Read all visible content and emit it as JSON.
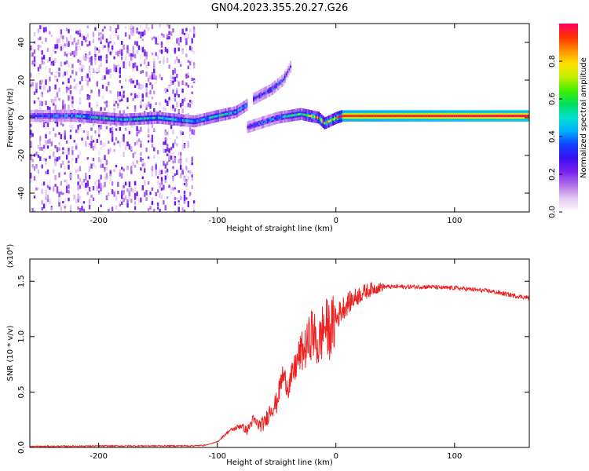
{
  "title": "GN04.2023.355.20.27.G26",
  "chart_data": [
    {
      "type": "heatmap",
      "xlabel": "Height of straight line (km)",
      "ylabel": "Frequency (Hz)",
      "xlim": [
        -258,
        163
      ],
      "ylim": [
        -50,
        50
      ],
      "xticks": [
        -200,
        -100,
        0,
        100
      ],
      "xtick_labels": [
        "-200",
        "-100",
        "0",
        "100"
      ],
      "yticks": [
        -40,
        -20,
        0,
        20,
        40
      ],
      "ytick_labels": [
        "-40",
        "-20",
        "0",
        "20",
        "40"
      ],
      "grid": false,
      "colorbar": {
        "label": "Normalized spectral amplitude",
        "range": [
          0,
          1
        ],
        "ticks": [
          0.0,
          0.2,
          0.4,
          0.6,
          0.8
        ],
        "tick_labels": [
          "0.0",
          "0.2",
          "0.4",
          "0.6",
          "0.8"
        ],
        "colors": [
          "#ffffff",
          "#e4c8f2",
          "#b070e8",
          "#7a22f0",
          "#3a10f0",
          "#1040ff",
          "#00b0ff",
          "#00e0d0",
          "#00e060",
          "#40f000",
          "#c0f000",
          "#ffe000",
          "#ff9000",
          "#ff3000",
          "#ff0060"
        ]
      },
      "features": [
        {
          "name": "noise",
          "x_range": [
            -258,
            -120
          ],
          "amplitude": 0.2
        },
        {
          "name": "main band",
          "points": [
            [
              -258,
              1,
              0.3
            ],
            [
              -220,
              1,
              0.4
            ],
            [
              -200,
              0,
              0.5
            ],
            [
              -180,
              -1,
              0.45
            ],
            [
              -150,
              0,
              0.5
            ],
            [
              -120,
              -2,
              0.45
            ],
            [
              -100,
              1,
              0.5
            ],
            [
              -85,
              3,
              0.45
            ],
            [
              -75,
              7,
              0.4
            ]
          ]
        },
        {
          "name": "lower branch",
          "points": [
            [
              -75,
              -5,
              0.3
            ],
            [
              -50,
              0,
              0.4
            ],
            [
              -30,
              2,
              0.55
            ],
            [
              -15,
              0,
              0.8
            ],
            [
              -10,
              -3,
              0.7
            ],
            [
              0,
              0,
              0.8
            ],
            [
              5,
              1,
              0.95
            ],
            [
              163,
              1,
              1.0
            ]
          ]
        },
        {
          "name": "upper branch",
          "points": [
            [
              -70,
              10,
              0.3
            ],
            [
              -55,
              15,
              0.35
            ],
            [
              -45,
              20,
              0.3
            ],
            [
              -38,
              28,
              0.25
            ]
          ]
        }
      ]
    },
    {
      "type": "line",
      "xlabel": "Height of straight line (km)",
      "ylabel": "SNR (10 * v/v)",
      "scale_label": "(x10⁴)",
      "xlim": [
        -258,
        163
      ],
      "ylim": [
        0,
        1.7
      ],
      "xticks": [
        -200,
        -100,
        0,
        100
      ],
      "xtick_labels": [
        "-200",
        "-100",
        "0",
        "100"
      ],
      "yticks": [
        0.0,
        0.5,
        1.0,
        1.5
      ],
      "ytick_labels": [
        "0.0",
        "0.5",
        "1.0",
        "1.5"
      ],
      "grid": false,
      "color": "#ee2222",
      "series": [
        {
          "x": [
            -258,
            -240,
            -220,
            -200,
            -180,
            -160,
            -140,
            -120,
            -110,
            -100,
            -95,
            -90,
            -85,
            -80,
            -75,
            -70,
            -65,
            -60,
            -55,
            -50,
            -45,
            -40,
            -35,
            -30,
            -25,
            -20,
            -15,
            -10,
            -5,
            0,
            5,
            10,
            20,
            30,
            40,
            50,
            60,
            70,
            80,
            90,
            100,
            110,
            120,
            130,
            140,
            150,
            163
          ],
          "y": [
            0.01,
            0.01,
            0.012,
            0.013,
            0.013,
            0.014,
            0.014,
            0.015,
            0.02,
            0.05,
            0.1,
            0.15,
            0.17,
            0.2,
            0.15,
            0.25,
            0.2,
            0.22,
            0.35,
            0.4,
            0.65,
            0.55,
            0.7,
            0.85,
            0.9,
            1.05,
            0.9,
            1.1,
            1.05,
            1.15,
            1.25,
            1.3,
            1.38,
            1.43,
            1.45,
            1.45,
            1.45,
            1.45,
            1.45,
            1.44,
            1.44,
            1.43,
            1.42,
            1.41,
            1.39,
            1.37,
            1.35
          ]
        }
      ]
    }
  ]
}
